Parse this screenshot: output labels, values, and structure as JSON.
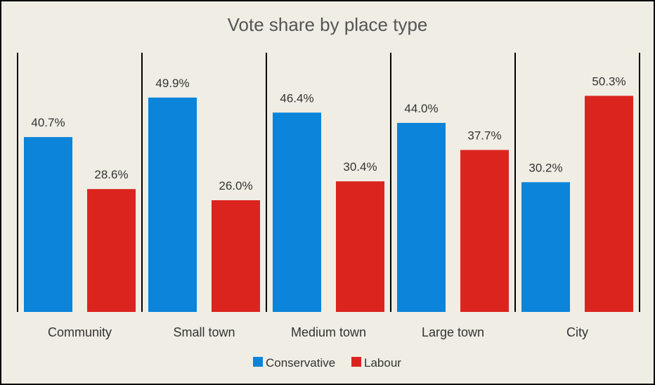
{
  "chart_data": {
    "type": "bar",
    "title": "Vote share by place type",
    "categories": [
      "Community",
      "Small town",
      "Medium town",
      "Large town",
      "City"
    ],
    "series": [
      {
        "name": "Conservative",
        "color": "#0b84d9",
        "values": [
          40.7,
          49.9,
          46.4,
          44.0,
          30.2
        ],
        "labels": [
          "40.7%",
          "49.9%",
          "46.4%",
          "44.0%",
          "30.2%"
        ]
      },
      {
        "name": "Labour",
        "color": "#dc241f",
        "values": [
          28.6,
          26.0,
          30.4,
          37.7,
          50.3
        ],
        "labels": [
          "28.6%",
          "26.0%",
          "30.4%",
          "37.7%",
          "50.3%"
        ]
      }
    ],
    "ylim": [
      0,
      60
    ],
    "grid": false,
    "legend": "bottom"
  }
}
